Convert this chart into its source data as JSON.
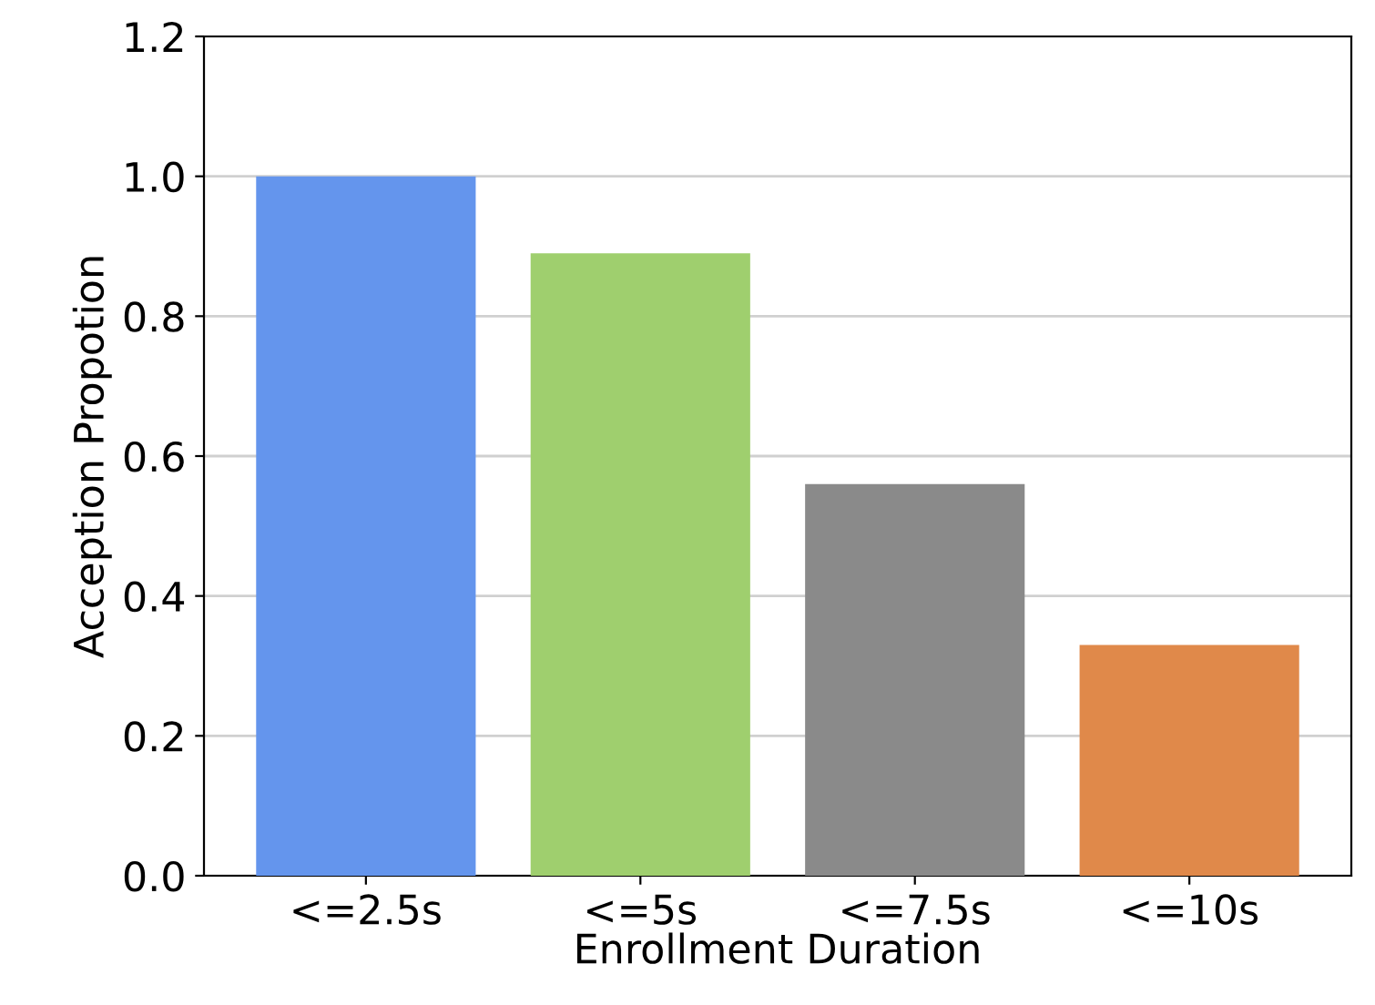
{
  "chart_data": {
    "type": "bar",
    "xlabel": "Enrollment Duration",
    "ylabel": "Acception Propotion",
    "categories": [
      "<=2.5s",
      "<=5s",
      "<=7.5s",
      "<=10s"
    ],
    "values": [
      1.0,
      0.89,
      0.56,
      0.33
    ],
    "colors": [
      "#6495ed",
      "#9fcf6e",
      "#8a8a8a",
      "#e0894a"
    ],
    "ylim": [
      0,
      1.2
    ],
    "yticks": [
      {
        "value": 0,
        "label": "0.0"
      },
      0.2,
      0.4,
      0.6,
      0.8,
      {
        "value": 1,
        "label": "1.0"
      },
      1.2
    ],
    "grid": "y"
  }
}
